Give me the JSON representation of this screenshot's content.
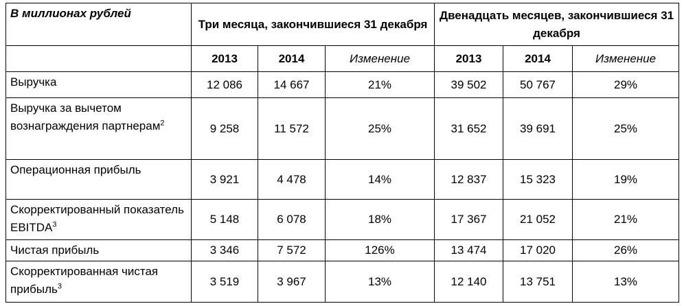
{
  "table": {
    "header": {
      "corner": "В миллионах рублей",
      "groups": [
        "Три месяца, закончившиеся 31 декабря",
        "Двенадцать месяцев, закончившиеся 31 декабря"
      ],
      "subheaders": [
        "2013",
        "2014",
        "Изменение",
        "2013",
        "2014",
        "Изменение"
      ]
    },
    "rows": [
      {
        "label": "Выручка",
        "cells": [
          "12 086",
          "14 667",
          "21%",
          "39 502",
          "50 767",
          "29%"
        ]
      },
      {
        "label": "Выручка за вычетом вознаграждения партнерам",
        "note": "2",
        "cells": [
          "9 258",
          "11 572",
          "25%",
          "31 652",
          "39 691",
          "25%"
        ]
      },
      {
        "label": "Операционная прибыль",
        "cells": [
          "3 921",
          "4 478",
          "14%",
          "12 837",
          "15 323",
          "19%"
        ]
      },
      {
        "label": "Скорректированный показатель EBITDA",
        "note": "3",
        "cells": [
          "5 148",
          "6 078",
          "18%",
          "17 367",
          "21 052",
          "21%"
        ]
      },
      {
        "label": "Чистая прибыль",
        "cells": [
          "3 346",
          "7 572",
          "126%",
          "13 474",
          "17 020",
          "26%"
        ]
      },
      {
        "label": "Скорректированная чистая прибыль",
        "note": "3",
        "cells": [
          "3 519",
          "3 967",
          "13%",
          "12 140",
          "13 751",
          "13%"
        ]
      }
    ]
  }
}
